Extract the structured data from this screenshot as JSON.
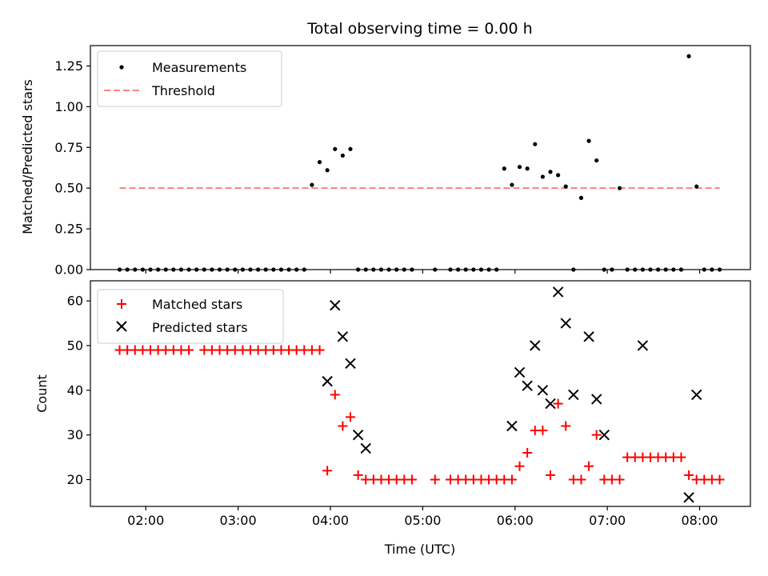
{
  "chart_data": [
    {
      "type": "scatter",
      "title": "Total observing time = 0.00 h",
      "xlabel": "",
      "ylabel": "Matched/Predicted stars",
      "xlim_hours": [
        1.4,
        8.55
      ],
      "ylim": [
        0,
        1.375
      ],
      "yticks": [
        "0.00",
        "0.25",
        "0.50",
        "0.75",
        "1.00",
        "1.25"
      ],
      "ytick_values": [
        0,
        0.25,
        0.5,
        0.75,
        1.0,
        1.25
      ],
      "x_tick_hours": [
        2,
        3,
        4,
        5,
        6,
        7,
        8
      ],
      "legend": {
        "placement": "top-left",
        "entries": [
          "Measurements",
          "Threshold"
        ]
      },
      "colors": {
        "measurements": "#000000",
        "threshold": "#ff7f7f"
      },
      "threshold": {
        "value": 0.5,
        "x_from": "01:43",
        "x_to": "08:13"
      },
      "series": [
        {
          "name": "Measurements",
          "x": [
            "01:43",
            "01:48",
            "01:53",
            "01:58",
            "02:03",
            "02:08",
            "02:13",
            "02:18",
            "02:23",
            "02:28",
            "02:33",
            "02:38",
            "02:43",
            "02:48",
            "02:53",
            "02:58",
            "03:03",
            "03:08",
            "03:13",
            "03:18",
            "03:23",
            "03:28",
            "03:33",
            "03:38",
            "03:43",
            "03:48",
            "03:53",
            "03:58",
            "04:03",
            "04:08",
            "04:13",
            "04:18",
            "04:23",
            "04:28",
            "04:33",
            "04:38",
            "04:43",
            "04:48",
            "04:53",
            "05:08",
            "05:18",
            "05:23",
            "05:28",
            "05:33",
            "05:38",
            "05:43",
            "05:48",
            "05:53",
            "05:58",
            "06:03",
            "06:08",
            "06:13",
            "06:18",
            "06:23",
            "06:28",
            "06:33",
            "06:38",
            "06:43",
            "06:48",
            "06:53",
            "06:58",
            "07:03",
            "07:08",
            "07:13",
            "07:18",
            "07:23",
            "07:28",
            "07:33",
            "07:38",
            "07:43",
            "07:48",
            "07:53",
            "07:58",
            "08:03",
            "08:08",
            "08:13"
          ],
          "y": [
            0,
            0,
            0,
            0,
            0,
            0,
            0,
            0,
            0,
            0,
            0,
            0,
            0,
            0,
            0,
            0,
            0,
            0,
            0,
            0,
            0,
            0,
            0,
            0,
            0,
            0.52,
            0.66,
            0.61,
            0.74,
            0.7,
            0.74,
            0,
            0,
            0,
            0,
            0,
            0,
            0,
            0,
            0,
            0,
            0,
            0,
            0,
            0,
            0,
            0,
            0.62,
            0.52,
            0.63,
            0.62,
            0.77,
            0.57,
            0.6,
            0.58,
            0.51,
            0,
            0.44,
            0.79,
            0.67,
            0,
            0,
            0.5,
            0,
            0,
            0,
            0,
            0,
            0,
            0,
            0,
            1.31,
            0.51,
            0,
            0,
            0
          ]
        }
      ]
    },
    {
      "type": "scatter",
      "title": "",
      "xlabel": "Time (UTC)",
      "ylabel": "Count",
      "xlim_hours": [
        1.4,
        8.55
      ],
      "ylim": [
        14,
        64.5
      ],
      "yticks": [
        "20",
        "30",
        "40",
        "50",
        "60"
      ],
      "ytick_values": [
        20,
        30,
        40,
        50,
        60
      ],
      "xticks": [
        "02:00",
        "03:00",
        "04:00",
        "05:00",
        "06:00",
        "07:00",
        "08:00"
      ],
      "x_tick_hours": [
        2,
        3,
        4,
        5,
        6,
        7,
        8
      ],
      "legend": {
        "placement": "top-left",
        "entries": [
          "Matched stars",
          "Predicted stars"
        ]
      },
      "colors": {
        "matched": "#ff0000",
        "predicted": "#000000"
      },
      "series": [
        {
          "name": "Matched stars",
          "marker": "plus",
          "x": [
            "01:43",
            "01:48",
            "01:53",
            "01:58",
            "02:03",
            "02:08",
            "02:13",
            "02:18",
            "02:23",
            "02:28",
            "02:38",
            "02:43",
            "02:48",
            "02:53",
            "02:58",
            "03:03",
            "03:08",
            "03:13",
            "03:18",
            "03:23",
            "03:28",
            "03:33",
            "03:38",
            "03:43",
            "03:48",
            "03:53",
            "03:58",
            "04:03",
            "04:08",
            "04:13",
            "04:18",
            "04:23",
            "04:28",
            "04:33",
            "04:38",
            "04:43",
            "04:48",
            "04:53",
            "05:08",
            "05:18",
            "05:23",
            "05:28",
            "05:33",
            "05:38",
            "05:43",
            "05:48",
            "05:53",
            "05:58",
            "06:03",
            "06:08",
            "06:13",
            "06:18",
            "06:23",
            "06:28",
            "06:33",
            "06:38",
            "06:43",
            "06:48",
            "06:53",
            "06:58",
            "07:03",
            "07:08",
            "07:13",
            "07:18",
            "07:23",
            "07:28",
            "07:33",
            "07:38",
            "07:43",
            "07:48",
            "07:53",
            "07:58",
            "08:03",
            "08:08",
            "08:13"
          ],
          "y": [
            49,
            49,
            49,
            49,
            49,
            49,
            49,
            49,
            49,
            49,
            49,
            49,
            49,
            49,
            49,
            49,
            49,
            49,
            49,
            49,
            49,
            49,
            49,
            49,
            49,
            49,
            22,
            39,
            32,
            34,
            21,
            20,
            20,
            20,
            20,
            20,
            20,
            20,
            20,
            20,
            20,
            20,
            20,
            20,
            20,
            20,
            20,
            20,
            23,
            26,
            31,
            31,
            21,
            37,
            32,
            20,
            20,
            23,
            30,
            20,
            20,
            20,
            25,
            25,
            25,
            25,
            25,
            25,
            25,
            25,
            21,
            20,
            20,
            20,
            20
          ]
        },
        {
          "name": "Predicted stars",
          "marker": "x",
          "x": [
            "03:58",
            "04:03",
            "04:08",
            "04:13",
            "04:18",
            "04:23",
            "05:58",
            "06:03",
            "06:08",
            "06:13",
            "06:18",
            "06:23",
            "06:28",
            "06:33",
            "06:38",
            "06:48",
            "06:53",
            "06:58",
            "07:23",
            "07:53",
            "07:58"
          ],
          "y": [
            42,
            59,
            52,
            46,
            30,
            27,
            32,
            44,
            41,
            50,
            40,
            37,
            62,
            55,
            39,
            52,
            38,
            30,
            50,
            16,
            39
          ]
        }
      ]
    }
  ]
}
